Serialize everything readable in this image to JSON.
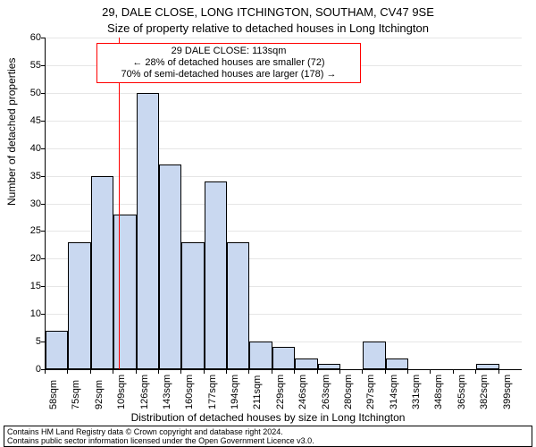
{
  "title": "29, DALE CLOSE, LONG ITCHINGTON, SOUTHAM, CV47 9SE",
  "subtitle": "Size of property relative to detached houses in Long Itchington",
  "y_axis": {
    "label": "Number of detached properties",
    "min": 0,
    "max": 60,
    "step": 5
  },
  "x_axis": {
    "label": "Distribution of detached houses by size in Long Itchington",
    "tick_labels": [
      "58sqm",
      "75sqm",
      "92sqm",
      "109sqm",
      "126sqm",
      "143sqm",
      "160sqm",
      "177sqm",
      "194sqm",
      "211sqm",
      "229sqm",
      "246sqm",
      "263sqm",
      "280sqm",
      "297sqm",
      "314sqm",
      "331sqm",
      "348sqm",
      "365sqm",
      "382sqm",
      "399sqm"
    ]
  },
  "chart": {
    "type": "bar",
    "values": [
      7,
      23,
      35,
      28,
      50,
      37,
      23,
      34,
      23,
      5,
      4,
      2,
      1,
      0,
      5,
      2,
      0,
      0,
      0,
      1,
      0
    ],
    "bar_fill": "#c9d8f0",
    "bar_stroke": "#000000",
    "background_color": "#ffffff",
    "grid_color": "#e6e6e6",
    "marker": {
      "value": 113,
      "x_min": 58,
      "x_range_per_bar": 17,
      "line_color": "#ff0000"
    }
  },
  "info_box": {
    "border_color": "#ff0000",
    "line1": "29 DALE CLOSE: 113sqm",
    "line2": "← 28% of detached houses are smaller (72)",
    "line3": "70% of semi-detached houses are larger (178) →"
  },
  "footer": {
    "line1": "Contains HM Land Registry data © Crown copyright and database right 2024.",
    "line2": "Contains public sector information licensed under the Open Government Licence v3.0."
  }
}
